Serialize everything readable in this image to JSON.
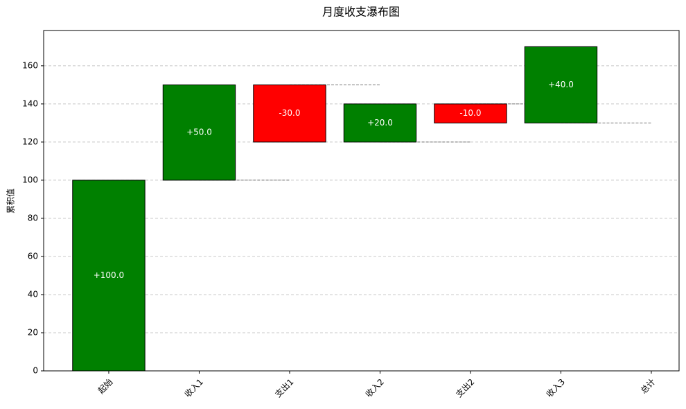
{
  "chart_data": {
    "type": "waterfall",
    "title": "月度收支瀑布图",
    "y_label": "累积值",
    "categories": [
      "起始",
      "收入1",
      "支出1",
      "收入2",
      "支出2",
      "收入3",
      "总计"
    ],
    "values": [
      100,
      50,
      -30,
      20,
      -10,
      40,
      null
    ],
    "value_labels": [
      "+100.0",
      "+50.0",
      "-30.0",
      "+20.0",
      "-10.0",
      "+40.0",
      null
    ],
    "positive_color": "#008000",
    "negative_color": "#ff0000",
    "ylim": [
      0,
      178.5
    ],
    "yticks": [
      0,
      20,
      40,
      60,
      80,
      100,
      120,
      140,
      160
    ],
    "grid": true
  }
}
